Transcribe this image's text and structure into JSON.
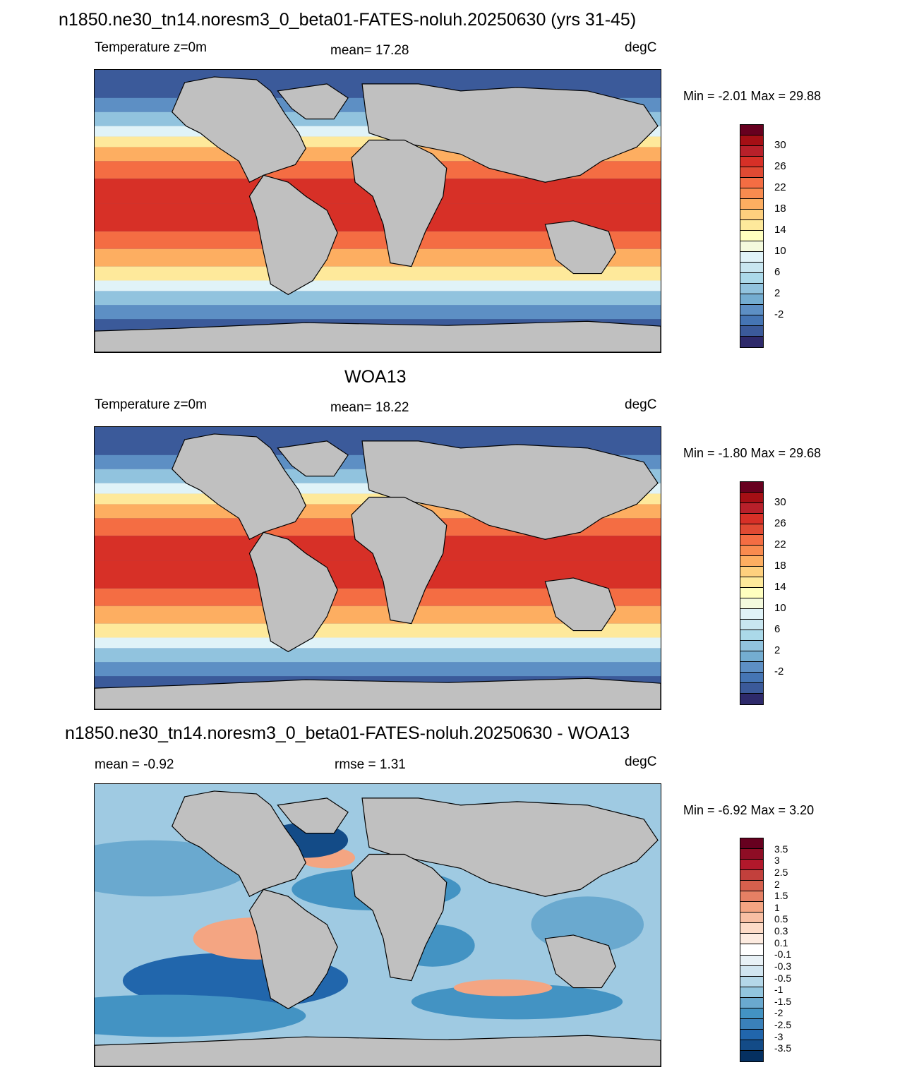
{
  "page_title": "n1850.ne30_tn14.noresm3_0_beta01-FATES-noluh.20250630 (yrs 31-45)",
  "panels": [
    {
      "title": "",
      "left_label": "Temperature z=0m",
      "center_label": "mean=  17.28",
      "units": "degC",
      "minmax": "Min =  -2.01 Max =  29.88",
      "colorbar": {
        "colors": [
          "#2e2a6b",
          "#3b5a9a",
          "#4575b4",
          "#5d8fc4",
          "#74add1",
          "#91c3de",
          "#abd9e9",
          "#c8e6f0",
          "#e0f3f8",
          "#f4fadd",
          "#ffffbf",
          "#fee99b",
          "#fed07e",
          "#fdae61",
          "#f98b4f",
          "#f46d43",
          "#e04a33",
          "#d73027",
          "#b8202a",
          "#a50f15",
          "#67001f"
        ],
        "tick_labels": [
          "30",
          "26",
          "22",
          "18",
          "14",
          "10",
          "6",
          "2",
          "-2"
        ]
      }
    },
    {
      "title": "WOA13",
      "left_label": "Temperature z=0m",
      "center_label": "mean=  18.22",
      "units": "degC",
      "minmax": "Min =  -1.80 Max =  29.68",
      "colorbar": {
        "colors": [
          "#2e2a6b",
          "#3b5a9a",
          "#4575b4",
          "#5d8fc4",
          "#74add1",
          "#91c3de",
          "#abd9e9",
          "#c8e6f0",
          "#e0f3f8",
          "#f4fadd",
          "#ffffbf",
          "#fee99b",
          "#fed07e",
          "#fdae61",
          "#f98b4f",
          "#f46d43",
          "#e04a33",
          "#d73027",
          "#b8202a",
          "#a50f15",
          "#67001f"
        ],
        "tick_labels": [
          "30",
          "26",
          "22",
          "18",
          "14",
          "10",
          "6",
          "2",
          "-2"
        ]
      }
    },
    {
      "title": "n1850.ne30_tn14.noresm3_0_beta01-FATES-noluh.20250630 - WOA13",
      "left_label": "mean =  -0.92",
      "center_label": "rmse =   1.31",
      "units": "degC",
      "minmax": "Min =  -6.92 Max =   3.20",
      "colorbar": {
        "colors": [
          "#053061",
          "#134b87",
          "#2166ac",
          "#3a81ba",
          "#4393c3",
          "#6aa9cf",
          "#92c5de",
          "#b4d7e8",
          "#d1e5f0",
          "#e8f1f6",
          "#ffffff",
          "#fdebe0",
          "#fddbc7",
          "#f8bfa3",
          "#f4a582",
          "#e58064",
          "#d6604d",
          "#c2403c",
          "#b2182b",
          "#8e0d25",
          "#67001f"
        ],
        "tick_labels": [
          "3.5",
          "3",
          "2.5",
          "2",
          "1.5",
          "1",
          "0.5",
          "0.3",
          "0.1",
          "-0.1",
          "-0.3",
          "-0.5",
          "-1",
          "-1.5",
          "-2",
          "-2.5",
          "-3",
          "-3.5"
        ]
      }
    }
  ]
}
